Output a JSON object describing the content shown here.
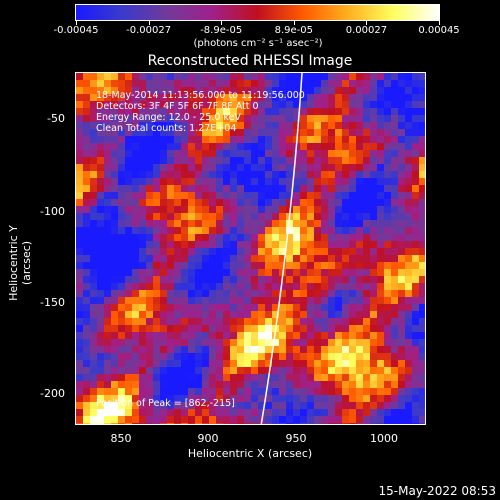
{
  "colorbar": {
    "labels": [
      "-0.00045",
      "-0.00027",
      "-8.9e-05",
      "8.9e-05",
      "0.00027",
      "0.00045"
    ],
    "unit": "(photons cm⁻² s⁻¹ asec⁻²)",
    "colors": [
      "#1a1aff",
      "#3a3acc",
      "#703a9a",
      "#a0208a",
      "#c01020",
      "#ff5a00",
      "#ffb020",
      "#ffff60",
      "#ffffff"
    ]
  },
  "plot": {
    "title": "Reconstructed RHESSI Image",
    "annotations": [
      "18-May-2014 11:13:56.000 to 11:19:56.000",
      "Detectors: 3F 4F 5F 6F 7F 8F  Att 0",
      "Energy Range: 12.0 - 25.0 keV",
      "Clean     Total counts: 1.27E+04"
    ],
    "peak": "Position of Peak = [862,-215]",
    "xlabel": "Heliocentric X (arcsec)",
    "ylabel": "Heliocentric Y (arcsec)",
    "xticks": [
      "850",
      "900",
      "950",
      "1000"
    ],
    "yticks": [
      "-50",
      "-100",
      "-150",
      "-200"
    ]
  },
  "footer": {
    "timestamp": "15-May-2022 08:53"
  }
}
